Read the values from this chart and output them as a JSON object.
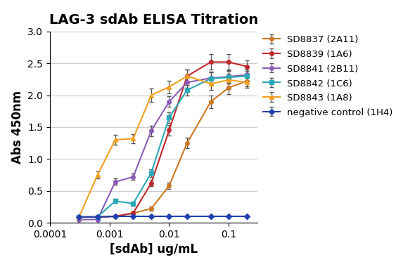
{
  "title": "LAG-3 sdAb ELISA Titration",
  "xlabel": "[sdAb] ug/mL",
  "ylabel": "Abs 450nm",
  "xlim": [
    0.0001,
    0.3
  ],
  "ylim": [
    0.0,
    3.0
  ],
  "yticks": [
    0.0,
    0.5,
    1.0,
    1.5,
    2.0,
    2.5,
    3.0
  ],
  "xtick_labels": [
    "0.0001",
    "0.001",
    "0.01",
    "0.1"
  ],
  "xtick_vals": [
    0.0001,
    0.001,
    0.01,
    0.1
  ],
  "series": [
    {
      "label": "SD8837 (2A11)",
      "color": "#CC7722",
      "marker": "o",
      "x": [
        0.00031,
        0.00063,
        0.00125,
        0.0025,
        0.005,
        0.01,
        0.02,
        0.05,
        0.1,
        0.2
      ],
      "y": [
        0.09,
        0.09,
        0.1,
        0.15,
        0.22,
        0.58,
        1.25,
        1.9,
        2.12,
        2.22
      ],
      "yerr": [
        0.01,
        0.01,
        0.01,
        0.02,
        0.03,
        0.05,
        0.08,
        0.1,
        0.1,
        0.08
      ]
    },
    {
      "label": "SD8839 (1A6)",
      "color": "#C0282C",
      "marker": "o",
      "x": [
        0.00031,
        0.00063,
        0.00125,
        0.0025,
        0.005,
        0.01,
        0.02,
        0.05,
        0.1,
        0.2
      ],
      "y": [
        0.09,
        0.09,
        0.1,
        0.15,
        0.62,
        1.45,
        2.3,
        2.52,
        2.52,
        2.45
      ],
      "yerr": [
        0.01,
        0.01,
        0.01,
        0.02,
        0.05,
        0.08,
        0.1,
        0.12,
        0.12,
        0.1
      ]
    },
    {
      "label": "SD8841 (2B11)",
      "color": "#8B5BB5",
      "marker": "o",
      "x": [
        0.00031,
        0.00063,
        0.00125,
        0.0025,
        0.005,
        0.01,
        0.02,
        0.05,
        0.1,
        0.2
      ],
      "y": [
        0.05,
        0.05,
        0.64,
        0.72,
        1.44,
        1.9,
        2.2,
        2.27,
        2.29,
        2.32
      ],
      "yerr": [
        0.01,
        0.01,
        0.05,
        0.05,
        0.08,
        0.08,
        0.08,
        0.1,
        0.1,
        0.08
      ]
    },
    {
      "label": "SD8842 (1C6)",
      "color": "#2BA8B8",
      "marker": "s",
      "x": [
        0.00031,
        0.00063,
        0.00125,
        0.0025,
        0.005,
        0.01,
        0.02,
        0.05,
        0.1,
        0.2
      ],
      "y": [
        0.09,
        0.09,
        0.34,
        0.3,
        0.78,
        1.65,
        2.08,
        2.26,
        2.28,
        2.3
      ],
      "yerr": [
        0.01,
        0.01,
        0.03,
        0.03,
        0.06,
        0.08,
        0.08,
        0.1,
        0.1,
        0.08
      ]
    },
    {
      "label": "SD8843 (1A8)",
      "color": "#F0A020",
      "marker": "^",
      "x": [
        0.00031,
        0.00063,
        0.00125,
        0.0025,
        0.005,
        0.01,
        0.02,
        0.05,
        0.1,
        0.2
      ],
      "y": [
        0.09,
        0.75,
        1.3,
        1.32,
        2.0,
        2.13,
        2.3,
        2.18,
        2.24,
        2.2
      ],
      "yerr": [
        0.01,
        0.05,
        0.08,
        0.07,
        0.1,
        0.1,
        0.1,
        0.1,
        0.1,
        0.08
      ]
    },
    {
      "label": "negative control (1H4)",
      "color": "#2040B0",
      "marker": "D",
      "x": [
        0.00031,
        0.00063,
        0.00125,
        0.0025,
        0.005,
        0.01,
        0.02,
        0.05,
        0.1,
        0.2
      ],
      "y": [
        0.09,
        0.09,
        0.1,
        0.1,
        0.1,
        0.1,
        0.1,
        0.1,
        0.1,
        0.1
      ],
      "yerr": [
        0.005,
        0.005,
        0.005,
        0.005,
        0.005,
        0.005,
        0.005,
        0.005,
        0.005,
        0.005
      ]
    }
  ],
  "background_color": "#FFFFFF",
  "grid_color": "#CCCCCC",
  "title_fontsize": 14,
  "axis_label_fontsize": 12,
  "tick_fontsize": 10,
  "legend_fontsize": 9.5,
  "figwidth": 5.9,
  "figheight": 3.73,
  "dpi": 100
}
